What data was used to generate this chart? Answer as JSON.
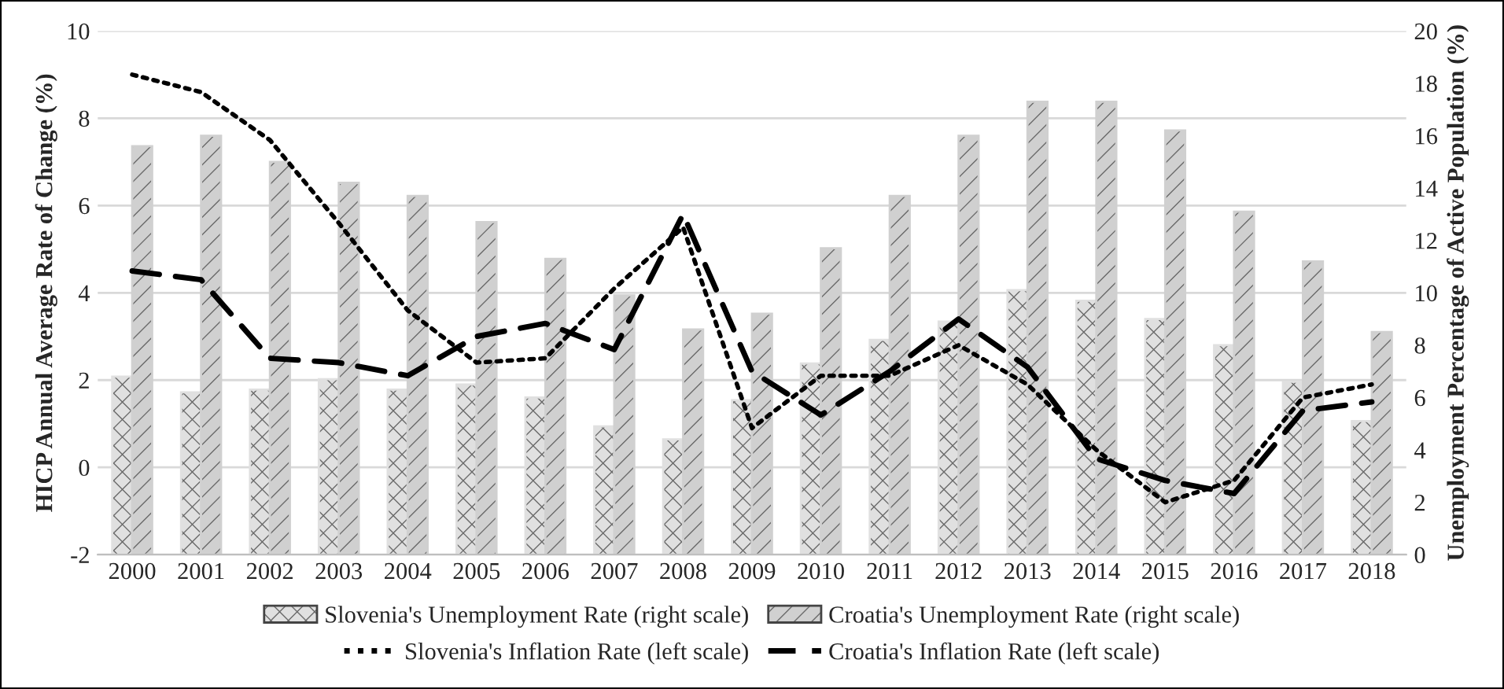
{
  "chart_data": {
    "type": "bar",
    "categories": [
      "2000",
      "2001",
      "2002",
      "2003",
      "2004",
      "2005",
      "2006",
      "2007",
      "2008",
      "2009",
      "2010",
      "2011",
      "2012",
      "2013",
      "2014",
      "2015",
      "2016",
      "2017",
      "2018"
    ],
    "ylabel": "HICP Annual Average Rate of Change (%)",
    "y2label": "Unemployment Percentage of Active Population (%)",
    "ylim": [
      -2,
      10
    ],
    "yticks": [
      -2,
      0,
      2,
      4,
      6,
      8,
      10
    ],
    "y2lim": [
      0,
      20
    ],
    "y2ticks": [
      0,
      2,
      4,
      6,
      8,
      10,
      12,
      14,
      16,
      18,
      20
    ],
    "grid": "y",
    "legend": "bottom",
    "series": [
      {
        "name": "Slovenia's Unemployment Rate (right scale)",
        "axis": "y2",
        "color": "#e0e0e0",
        "values": [
          6.8,
          6.2,
          6.3,
          6.7,
          6.3,
          6.5,
          6.0,
          4.9,
          4.4,
          5.9,
          7.3,
          8.2,
          8.9,
          10.1,
          9.7,
          9.0,
          8.0,
          6.6,
          5.1
        ]
      },
      {
        "name": "Croatia's Unemployment Rate (right scale)",
        "axis": "y2",
        "color": "#d0d0d0",
        "values": [
          15.6,
          16.0,
          15.0,
          14.2,
          13.7,
          12.7,
          11.3,
          9.9,
          8.6,
          9.2,
          11.7,
          13.7,
          16.0,
          17.3,
          17.3,
          16.2,
          13.1,
          11.2,
          8.5
        ]
      },
      {
        "name": "Slovenia's Inflation Rate (left scale)",
        "type": "line",
        "axis": "y",
        "color": "#000000",
        "line_style": "dotted",
        "values": [
          9.0,
          8.6,
          7.5,
          5.6,
          3.6,
          2.4,
          2.5,
          4.1,
          5.5,
          0.9,
          2.1,
          2.1,
          2.8,
          1.9,
          0.4,
          -0.8,
          -0.3,
          1.6,
          1.9
        ]
      },
      {
        "name": "Croatia's Inflation Rate (left scale)",
        "type": "line",
        "axis": "y",
        "color": "#000000",
        "line_style": "dashed",
        "values": [
          4.5,
          4.3,
          2.5,
          2.4,
          2.1,
          3.0,
          3.3,
          2.7,
          5.8,
          2.2,
          1.2,
          2.2,
          3.4,
          2.3,
          0.2,
          -0.3,
          -0.6,
          1.3,
          1.5
        ]
      }
    ]
  }
}
